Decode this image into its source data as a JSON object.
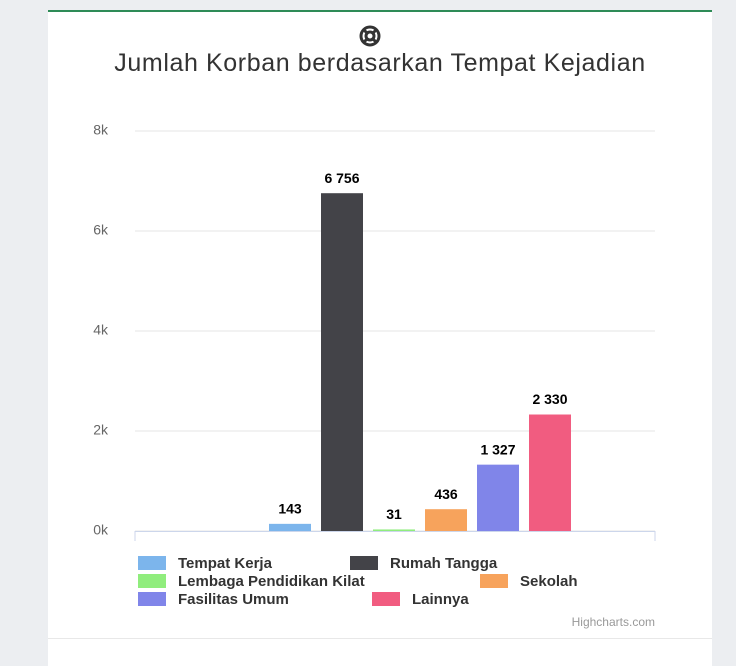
{
  "chart_data": {
    "type": "bar",
    "title": "Jumlah Korban berdasarkan Tempat Kejadian",
    "categories": [
      null
    ],
    "series": [
      {
        "name": "Tempat Kerja",
        "color": "#7cb5ec",
        "values": [
          143
        ],
        "value_labels": [
          "143"
        ]
      },
      {
        "name": "Rumah Tangga",
        "color": "#434348",
        "values": [
          6756
        ],
        "value_labels": [
          "6 756"
        ]
      },
      {
        "name": "Lembaga Pendidikan Kilat",
        "color": "#90ed7d",
        "values": [
          31
        ],
        "value_labels": [
          "31"
        ]
      },
      {
        "name": "Sekolah",
        "color": "#f7a35c",
        "values": [
          436
        ],
        "value_labels": [
          "436"
        ]
      },
      {
        "name": "Fasilitas Umum",
        "color": "#8085e9",
        "values": [
          1327
        ],
        "value_labels": [
          "1 327"
        ]
      },
      {
        "name": "Lainnya",
        "color": "#f15c80",
        "values": [
          2330
        ],
        "value_labels": [
          "2 330"
        ]
      }
    ],
    "ylim": [
      0,
      8000
    ],
    "yticks": [
      {
        "value": 0,
        "label": "0k"
      },
      {
        "value": 2000,
        "label": "2k"
      },
      {
        "value": 4000,
        "label": "4k"
      },
      {
        "value": 6000,
        "label": "6k"
      },
      {
        "value": 8000,
        "label": "8k"
      }
    ],
    "grid": true,
    "legend": "bottom",
    "credits": "Highcharts.com"
  }
}
